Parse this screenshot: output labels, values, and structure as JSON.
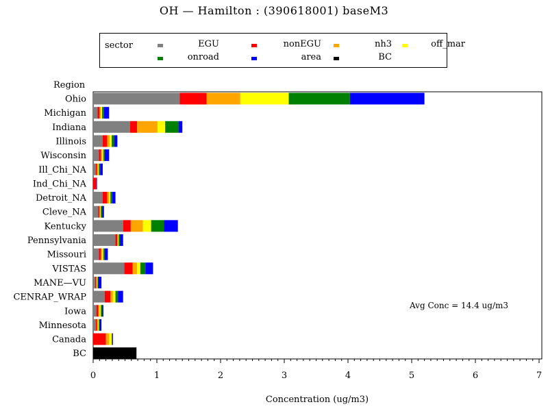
{
  "chart_data": {
    "type": "bar",
    "orientation": "horizontal",
    "stacked": true,
    "title": "OH  —  Hamilton  :  (390618001)  baseM3",
    "xlabel": "Concentration  (ug/m3)",
    "ylabel": "Region",
    "xlim": [
      0,
      7
    ],
    "x_ticks": [
      "0",
      "1",
      "2",
      "3",
      "4",
      "5",
      "6",
      "7"
    ],
    "grid": false,
    "legend_title": "sector",
    "legend_position": "top",
    "annotation": "Avg Conc  =  14.4  ug/m3",
    "categories": [
      "Ohio",
      "Michigan",
      "Indiana",
      "Illinois",
      "Wisconsin",
      "Ill_Chi_NA",
      "Ind_Chi_NA",
      "Detroit_NA",
      "Cleve_NA",
      "Kentucky",
      "Pennsylvania",
      "Missouri",
      "VISTAS",
      "MANE—VU",
      "CENRAP_WRAP",
      "Iowa",
      "Minnesota",
      "Canada",
      "BC"
    ],
    "series": [
      {
        "name": "EGU",
        "color": "#808080",
        "values": [
          1.36,
          0.07,
          0.58,
          0.15,
          0.09,
          0.04,
          0.0,
          0.15,
          0.08,
          0.47,
          0.35,
          0.09,
          0.49,
          0.03,
          0.18,
          0.05,
          0.04,
          0.0,
          0.0
        ]
      },
      {
        "name": "nonEGU",
        "color": "#ff0000",
        "values": [
          0.42,
          0.03,
          0.11,
          0.07,
          0.03,
          0.02,
          0.05,
          0.07,
          0.02,
          0.12,
          0.03,
          0.03,
          0.13,
          0.02,
          0.09,
          0.03,
          0.02,
          0.2,
          0.0
        ]
      },
      {
        "name": "nh3",
        "color": "#ffa500",
        "values": [
          0.53,
          0.02,
          0.32,
          0.04,
          0.02,
          0.02,
          0.0,
          0.03,
          0.01,
          0.19,
          0.01,
          0.02,
          0.07,
          0.01,
          0.04,
          0.02,
          0.02,
          0.05,
          0.0
        ]
      },
      {
        "name": "off_mar",
        "color": "#ffff00",
        "values": [
          0.76,
          0.02,
          0.12,
          0.03,
          0.02,
          0.01,
          0.0,
          0.02,
          0.01,
          0.13,
          0.01,
          0.02,
          0.05,
          0.01,
          0.04,
          0.02,
          0.01,
          0.04,
          0.0
        ]
      },
      {
        "name": "onroad",
        "color": "#008000",
        "values": [
          0.96,
          0.03,
          0.21,
          0.04,
          0.02,
          0.02,
          0.0,
          0.03,
          0.02,
          0.2,
          0.02,
          0.02,
          0.08,
          0.01,
          0.04,
          0.02,
          0.01,
          0.01,
          0.0
        ]
      },
      {
        "name": "area",
        "color": "#0000ff",
        "values": [
          1.17,
          0.08,
          0.06,
          0.05,
          0.07,
          0.04,
          0.01,
          0.05,
          0.03,
          0.22,
          0.05,
          0.05,
          0.12,
          0.05,
          0.08,
          0.02,
          0.03,
          0.01,
          0.0
        ]
      },
      {
        "name": "BC",
        "color": "#000000",
        "values": [
          0.0,
          0.0,
          0.0,
          0.0,
          0.0,
          0.0,
          0.0,
          0.0,
          0.0,
          0.0,
          0.0,
          0.0,
          0.0,
          0.0,
          0.0,
          0.0,
          0.0,
          0.0,
          0.68
        ]
      }
    ]
  }
}
